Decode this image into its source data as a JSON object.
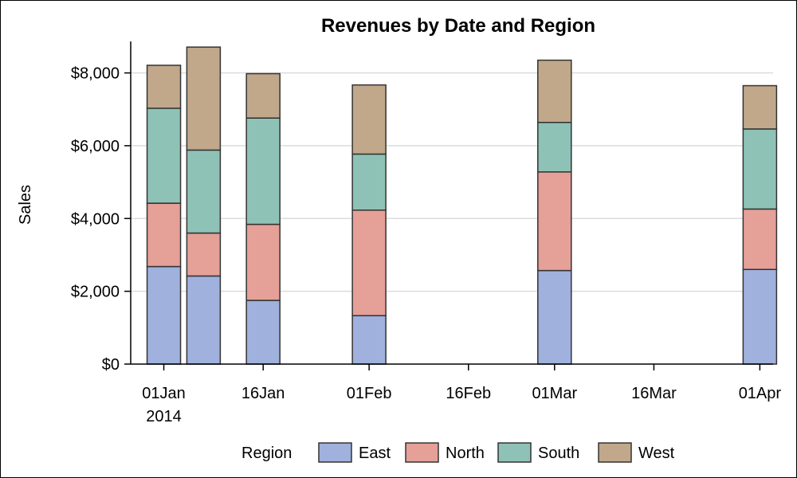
{
  "chart_data": {
    "type": "bar",
    "stacked": true,
    "title": "Revenues by Date and Region",
    "ylabel": "Sales",
    "xlabel": "",
    "ylim": [
      0,
      8800
    ],
    "yticks": [
      {
        "value": 0,
        "label": "$0"
      },
      {
        "value": 2000,
        "label": "$2,000"
      },
      {
        "value": 4000,
        "label": "$4,000"
      },
      {
        "value": 6000,
        "label": "$6,000"
      },
      {
        "value": 8000,
        "label": "$8,000"
      }
    ],
    "x_domain": [
      "2013-12-27",
      "2014-04-03"
    ],
    "xticks": [
      {
        "date": "2014-01-01",
        "label": "01Jan",
        "sublabel": "2014"
      },
      {
        "date": "2014-01-16",
        "label": "16Jan",
        "sublabel": ""
      },
      {
        "date": "2014-02-01",
        "label": "01Feb",
        "sublabel": ""
      },
      {
        "date": "2014-02-16",
        "label": "16Feb",
        "sublabel": ""
      },
      {
        "date": "2014-03-01",
        "label": "01Mar",
        "sublabel": ""
      },
      {
        "date": "2014-03-16",
        "label": "16Mar",
        "sublabel": ""
      },
      {
        "date": "2014-04-01",
        "label": "01Apr",
        "sublabel": ""
      }
    ],
    "dates": [
      "2014-01-01",
      "2014-01-07",
      "2014-01-16",
      "2014-02-01",
      "2014-03-01",
      "2014-04-01"
    ],
    "series": [
      {
        "name": "East",
        "color": "#9fb1dc",
        "values": [
          2680,
          2420,
          1750,
          1330,
          2570,
          2600
        ]
      },
      {
        "name": "North",
        "color": "#e5a097",
        "values": [
          1740,
          1180,
          2090,
          2900,
          2710,
          1660
        ]
      },
      {
        "name": "South",
        "color": "#8fc2b6",
        "values": [
          2610,
          2280,
          2920,
          1540,
          1360,
          2200
        ]
      },
      {
        "name": "West",
        "color": "#c1a88a",
        "values": [
          1180,
          2830,
          1220,
          1900,
          1710,
          1190
        ]
      }
    ],
    "legend": {
      "title": "Region",
      "position": "bottom"
    },
    "grid": true
  }
}
